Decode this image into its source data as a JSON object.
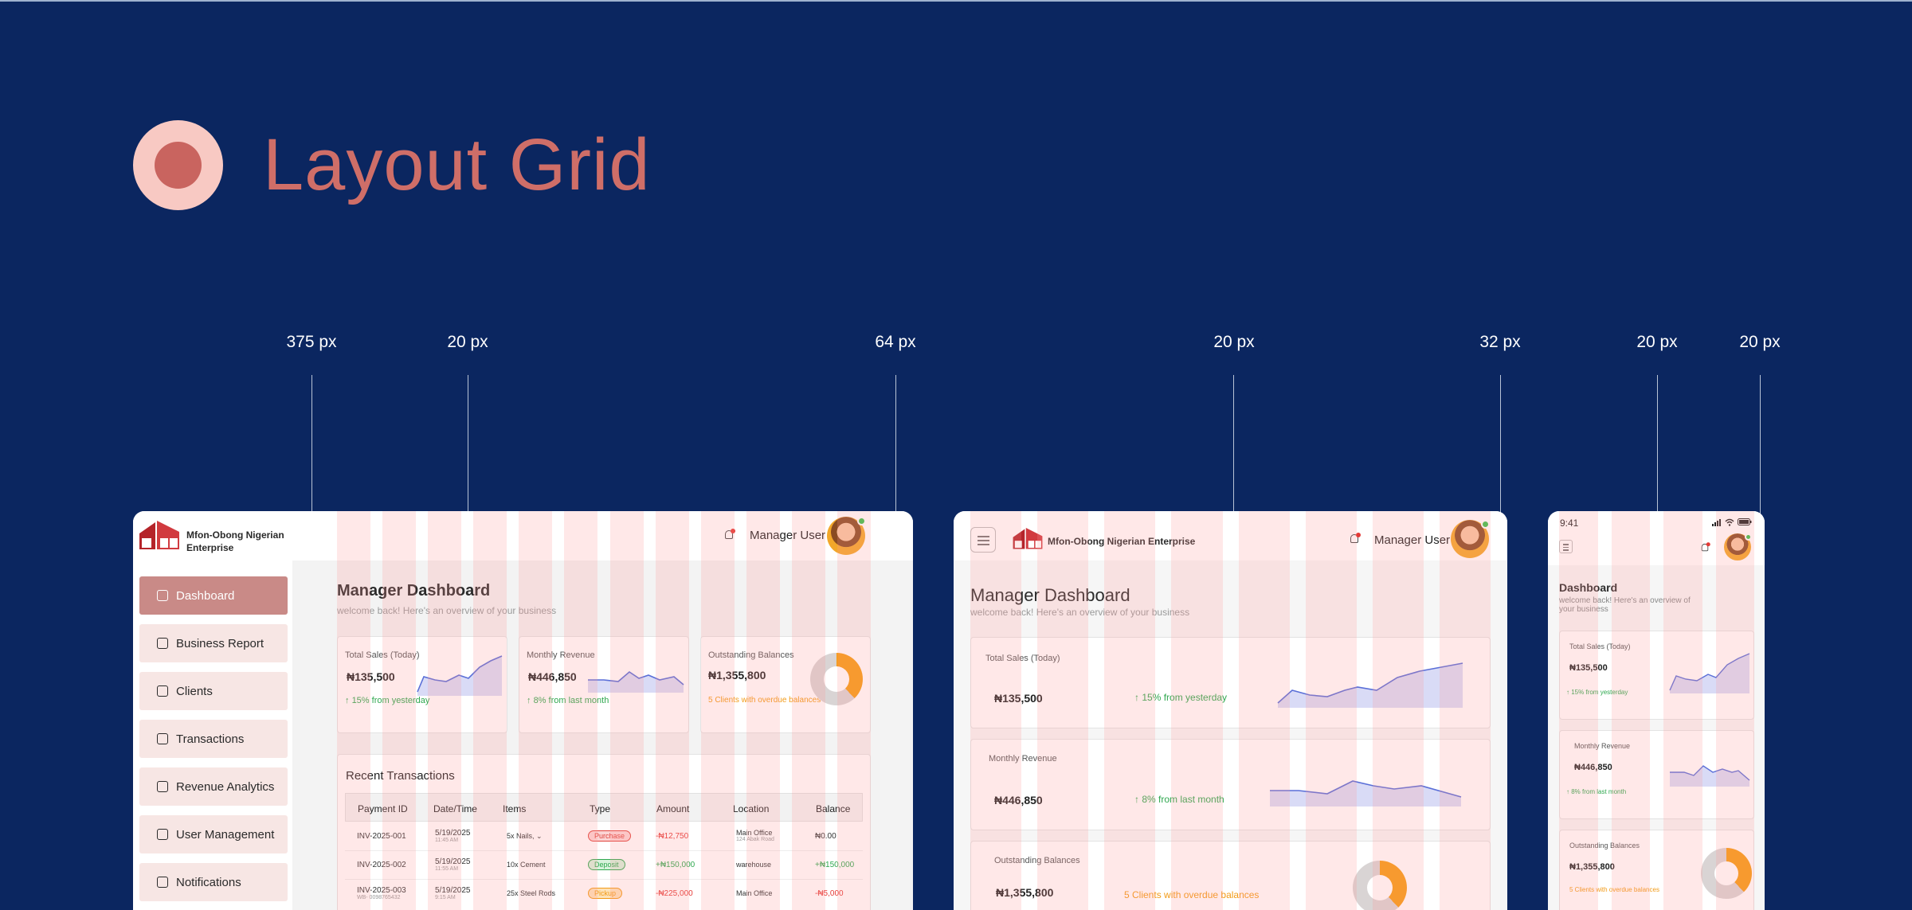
{
  "page": {
    "title": "Layout Grid"
  },
  "measures": [
    {
      "text": "375 px"
    },
    {
      "text": "20 px"
    },
    {
      "text": "64 px"
    },
    {
      "text": "20 px"
    },
    {
      "text": "32 px"
    },
    {
      "text": "20 px"
    },
    {
      "text": "20 px"
    }
  ],
  "desktop": {
    "brand": {
      "line1": "Mfon-Obong Nigerian",
      "line2": "Enterprise"
    },
    "user": "Manager User",
    "nav": [
      "Dashboard",
      "Business Report",
      "Clients",
      "Transactions",
      "Revenue Analytics",
      "User Management",
      "Notifications"
    ],
    "heading": "Manager Dashboard",
    "subheading": "welcome back! Here's an overview of your business",
    "cards": [
      {
        "label": "Total Sales (Today)",
        "value": "₦135,500",
        "change": "15% from yesterday"
      },
      {
        "label": "Monthly Revenue",
        "value": "₦446,850",
        "change": "8% from last month"
      },
      {
        "label": "Outstanding Balances",
        "value": "₦1,355,800",
        "change": "5 Clients with overdue balances"
      }
    ],
    "table": {
      "title": "Recent Transactions",
      "headers": [
        "Payment ID",
        "Date/Time",
        "Items",
        "Type",
        "Amount",
        "Location",
        "Balance"
      ],
      "rows": [
        {
          "id": "INV-2025-001",
          "date": "5/19/2025",
          "time": "11:45 AM",
          "items": "5x Nails,",
          "type": "Purchase",
          "amount": "-₦12,750",
          "location": "Main Office",
          "loc_sub": "124 Abak Road",
          "balance": "₦0.00"
        },
        {
          "id": "INV-2025-002",
          "date": "5/19/2025",
          "time": "11:55 AM",
          "items": "10x Cement",
          "type": "Deposit",
          "amount": "+₦150,000",
          "location": "warehouse",
          "loc_sub": "",
          "balance": "+₦150,000"
        },
        {
          "id": "INV-2025-003",
          "id_sub": "WB- 0098765432",
          "date": "5/19/2025",
          "time": "9:15 AM",
          "items": "25x Steel Rods",
          "type": "Pickup",
          "amount": "-₦225,000",
          "location": "Main Office",
          "loc_sub": "",
          "balance": "-₦5,000"
        }
      ]
    }
  },
  "tablet": {
    "brand": "Mfon-Obong Nigerian Enterprise",
    "user": "Manager User",
    "heading": "Manager Dashboard",
    "subheading": "welcome back! Here's an overview of your business",
    "cards": [
      {
        "label": "Total Sales (Today)",
        "value": "₦135,500",
        "change": "15% from yesterday"
      },
      {
        "label": "Monthly Revenue",
        "value": "₦446,850",
        "change": "8% from last month"
      },
      {
        "label": "Outstanding Balances",
        "value": "₦1,355,800",
        "change": "5 Clients with overdue balances"
      }
    ]
  },
  "mobile": {
    "time": "9:41",
    "heading": "Dashboard",
    "subheading": "welcome back! Here's an overview of your business",
    "cards": [
      {
        "label": "Total Sales (Today)",
        "value": "₦135,500",
        "change": "15% from yesterday"
      },
      {
        "label": "Monthly Revenue",
        "value": "₦446,850",
        "change": "8% from last month"
      },
      {
        "label": "Outstanding Balances",
        "value": "₦1,355,800",
        "change": "5 Clients with overdue balances"
      }
    ]
  },
  "colors": {
    "background": "#0b2660",
    "accent": "#cf6e68",
    "grid": "#ff9696",
    "positive": "#2fa84f",
    "warning": "#f29a16",
    "negative": "#e53935"
  },
  "icons": [
    "bell-icon",
    "menu-icon",
    "dashboard-icon",
    "report-icon",
    "clients-icon",
    "transactions-icon",
    "analytics-icon",
    "user-management-icon",
    "notifications-icon",
    "signal-icon",
    "wifi-icon",
    "battery-icon",
    "arrow-up-icon",
    "chevron-down-icon"
  ]
}
